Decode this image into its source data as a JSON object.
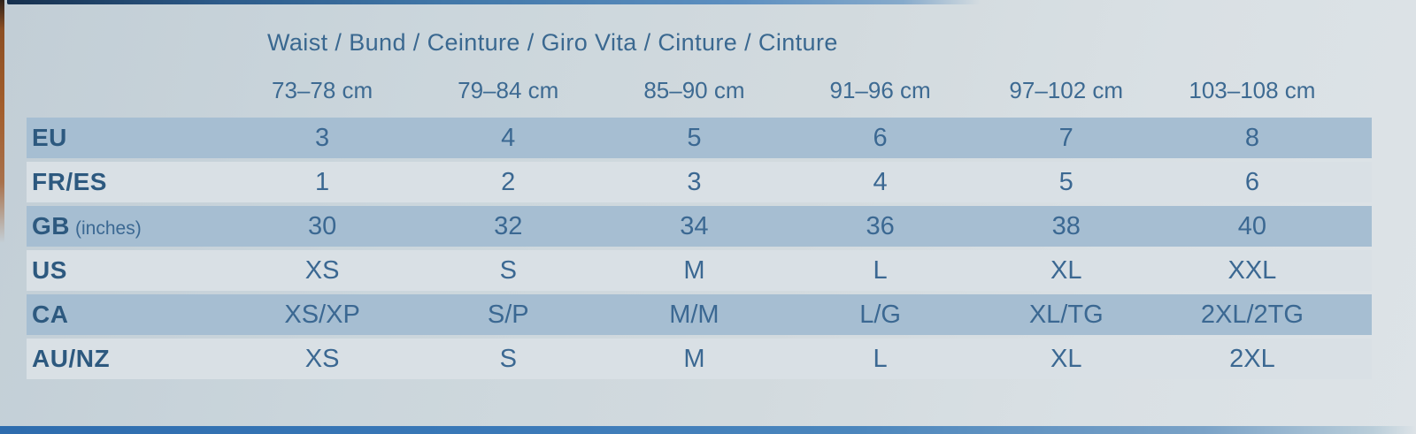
{
  "title": "Waist / Bund / Ceinture / Giro Vita / Cinture / Cinture",
  "table": {
    "column_headers": [
      "73–78 cm",
      "79–84 cm",
      "85–90 cm",
      "91–96 cm",
      "97–102 cm",
      "103–108 cm"
    ],
    "rows": [
      {
        "region": "EU",
        "note": "",
        "values": [
          "3",
          "4",
          "5",
          "6",
          "7",
          "8"
        ]
      },
      {
        "region": "FR/ES",
        "note": "",
        "values": [
          "1",
          "2",
          "3",
          "4",
          "5",
          "6"
        ]
      },
      {
        "region": "GB",
        "note": "(inches)",
        "values": [
          "30",
          "32",
          "34",
          "36",
          "38",
          "40"
        ]
      },
      {
        "region": "US",
        "note": "",
        "values": [
          "XS",
          "S",
          "M",
          "L",
          "XL",
          "XXL"
        ]
      },
      {
        "region": "CA",
        "note": "",
        "values": [
          "XS/XP",
          "S/P",
          "M/M",
          "L/G",
          "XL/TG",
          "2XL/2TG"
        ]
      },
      {
        "region": "AU/NZ",
        "note": "",
        "values": [
          "XS",
          "S",
          "M",
          "L",
          "XL",
          "2XL"
        ]
      }
    ]
  },
  "colors": {
    "card_background": "#cdd7dd",
    "stripe_dark": "#a6bed2",
    "stripe_light": "#d9e0e5",
    "text_blue": "#3b6892",
    "label_blue": "#2d597f",
    "card_top_edge": "#2d5b8a",
    "card_bottom_edge": "#3a79b8",
    "left_sliver_orange": "#a35e2c"
  }
}
